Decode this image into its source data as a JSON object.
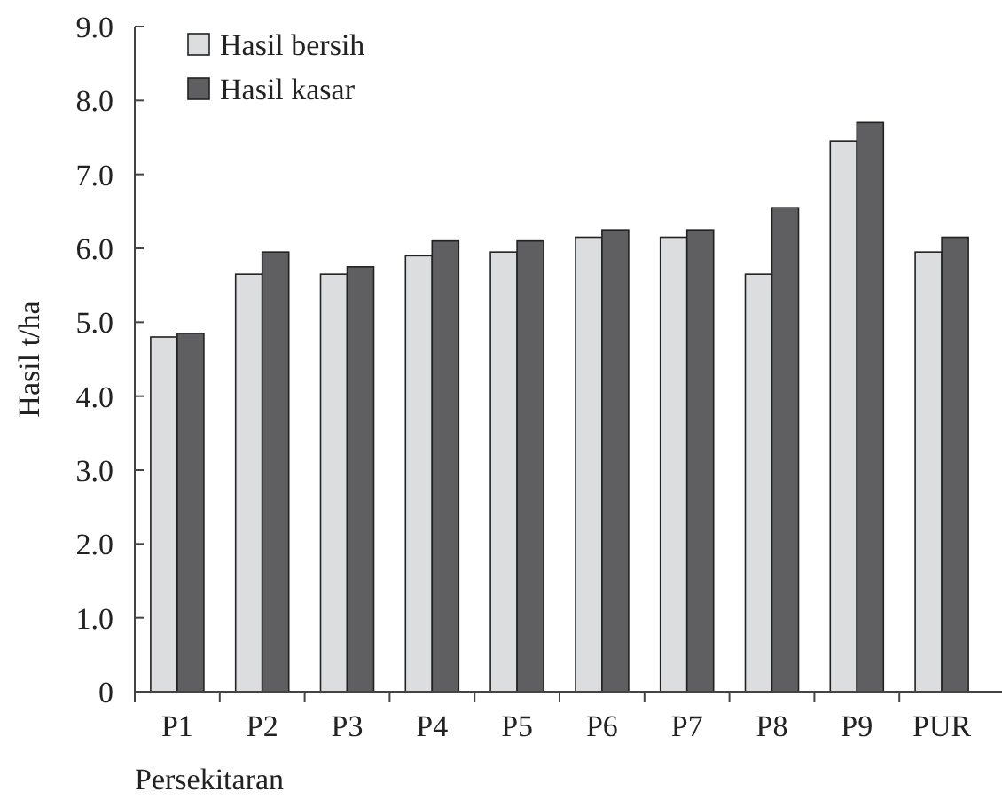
{
  "chart_data": {
    "type": "bar",
    "xlabel": "Persekitaran",
    "ylabel": "Hasil t/ha",
    "categories": [
      "P1",
      "P2",
      "P3",
      "P4",
      "P5",
      "P6",
      "P7",
      "P8",
      "P9",
      "PUR"
    ],
    "series": [
      {
        "name": "Hasil bersih",
        "color": "#dcdddf",
        "values": [
          4.8,
          5.65,
          5.65,
          5.9,
          5.95,
          6.15,
          6.15,
          5.65,
          7.45,
          5.95
        ]
      },
      {
        "name": "Hasil kasar",
        "color": "#5f5f62",
        "values": [
          4.85,
          5.95,
          5.75,
          6.1,
          6.1,
          6.25,
          6.25,
          6.55,
          7.7,
          6.15
        ]
      }
    ],
    "ylim": [
      0,
      9
    ],
    "yticks": [
      0,
      {
        "value": 1,
        "label": "1.0"
      },
      {
        "value": 2,
        "label": "2.0"
      },
      {
        "value": 3,
        "label": "3.0"
      },
      {
        "value": 4,
        "label": "4.0"
      },
      {
        "value": 5,
        "label": "5.0"
      },
      {
        "value": 6,
        "label": "6.0"
      },
      {
        "value": 7,
        "label": "7.0"
      },
      {
        "value": 8,
        "label": "8.0"
      },
      {
        "value": 9,
        "label": "9.0"
      }
    ],
    "grid": false,
    "legend": "top left"
  }
}
